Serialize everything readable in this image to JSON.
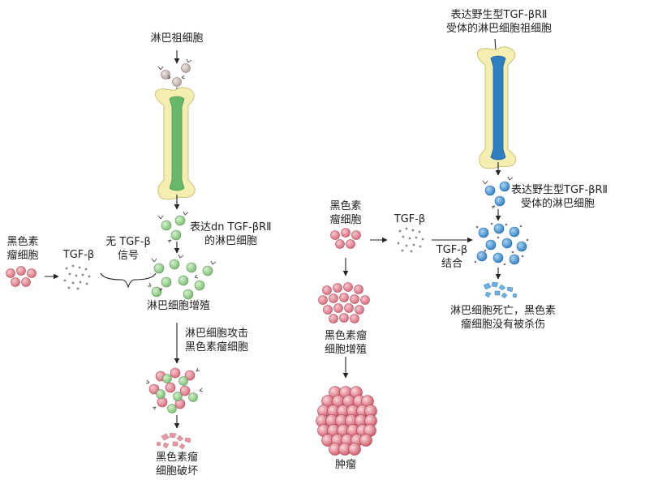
{
  "left_panel": {
    "progenitor_label": "淋巴祖细胞",
    "dn_lymph_label_1": "表达dn TGF-βRⅡ",
    "dn_lymph_label_2": "的淋巴细胞",
    "melanoma_label_1": "黑色素",
    "melanoma_label_2": "瘤细胞",
    "tgf_label": "TGF-β",
    "no_signal_1": "无 TGF-β",
    "no_signal_2": "信号",
    "proliferation_label": "淋巴细胞增殖",
    "attack_label_1": "淋巴细胞攻击",
    "attack_label_2": "黑色素瘤细胞",
    "destroyed_label_1": "黑色素瘤",
    "destroyed_label_2": "细胞破坏"
  },
  "right_panel": {
    "wt_progenitor_1": "表达野生型TGF-βRⅡ",
    "wt_progenitor_2": "受体的淋巴细胞祖细胞",
    "wt_lymph_1": "表达野生型TGF-βRⅡ",
    "wt_lymph_2": "受体的淋巴细胞",
    "melanoma_label_1": "黑色素",
    "melanoma_label_2": "瘤细胞",
    "tgf_label": "TGF-β",
    "binding_1": "TGF-β",
    "binding_2": "结合",
    "proliferation_1": "黑色素瘤",
    "proliferation_2": "细胞增殖",
    "death_1": "淋巴细胞死亡，黑色素",
    "death_2": "瘤细胞没有被杀伤",
    "tumor_label": "肿瘤"
  },
  "colors": {
    "green_cell": "#8fcf86",
    "pink_cell": "#e2828e",
    "blue_cell": "#3f90d0",
    "grey_cell": "#c9b8b4",
    "bone_fill": "#f4efb0",
    "bone_marrow_green": "#69b86a",
    "bone_marrow_blue": "#2f7fc0"
  }
}
